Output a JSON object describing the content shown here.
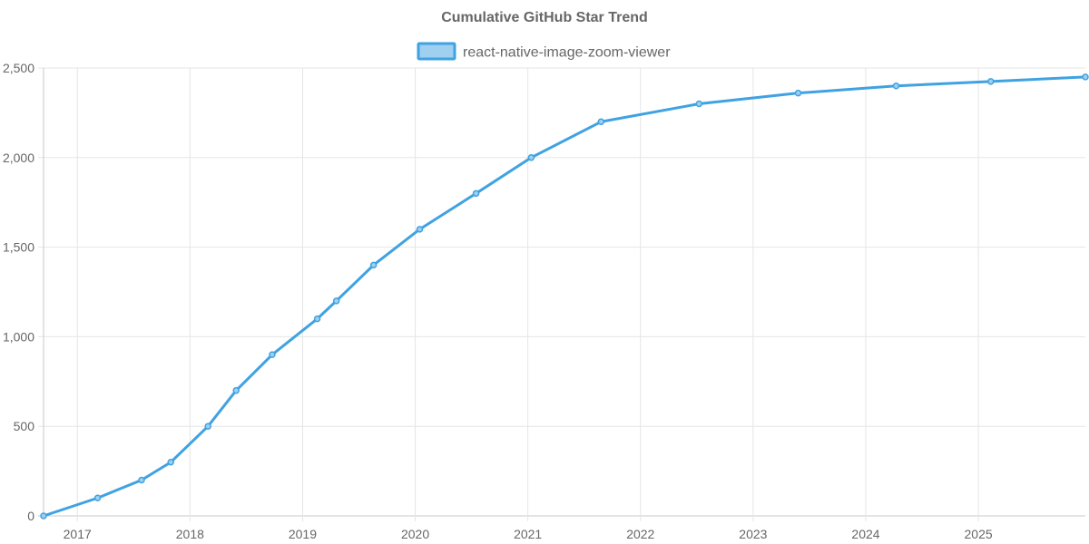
{
  "chart_data": {
    "type": "line",
    "title": "Cumulative GitHub Star Trend",
    "xlabel": "",
    "ylabel": "",
    "ylim": [
      0,
      2500
    ],
    "xlim": [
      2016.7,
      2025.95
    ],
    "y_ticks": [
      0,
      500,
      1000,
      1500,
      2000,
      2500
    ],
    "y_tick_labels": [
      "0",
      "500",
      "1,000",
      "1,500",
      "2,000",
      "2,500"
    ],
    "x_ticks": [
      2017,
      2018,
      2019,
      2020,
      2021,
      2022,
      2023,
      2024,
      2025
    ],
    "x_tick_labels": [
      "2017",
      "2018",
      "2019",
      "2020",
      "2021",
      "2022",
      "2023",
      "2024",
      "2025"
    ],
    "grid": true,
    "legend_position": "top",
    "series": [
      {
        "name": "react-native-image-zoom-viewer",
        "color": "#3fa2e2",
        "fill": "#9fd0f0",
        "points": [
          {
            "x": 2016.7,
            "y": 0
          },
          {
            "x": 2017.18,
            "y": 100
          },
          {
            "x": 2017.57,
            "y": 200
          },
          {
            "x": 2017.83,
            "y": 300
          },
          {
            "x": 2018.16,
            "y": 500
          },
          {
            "x": 2018.41,
            "y": 700
          },
          {
            "x": 2018.73,
            "y": 900
          },
          {
            "x": 2019.13,
            "y": 1100
          },
          {
            "x": 2019.3,
            "y": 1200
          },
          {
            "x": 2019.63,
            "y": 1400
          },
          {
            "x": 2020.04,
            "y": 1600
          },
          {
            "x": 2020.54,
            "y": 1800
          },
          {
            "x": 2021.03,
            "y": 2000
          },
          {
            "x": 2021.65,
            "y": 2200
          },
          {
            "x": 2022.52,
            "y": 2300
          },
          {
            "x": 2023.4,
            "y": 2360
          },
          {
            "x": 2024.27,
            "y": 2400
          },
          {
            "x": 2025.11,
            "y": 2425
          },
          {
            "x": 2025.95,
            "y": 2450
          }
        ]
      }
    ]
  }
}
